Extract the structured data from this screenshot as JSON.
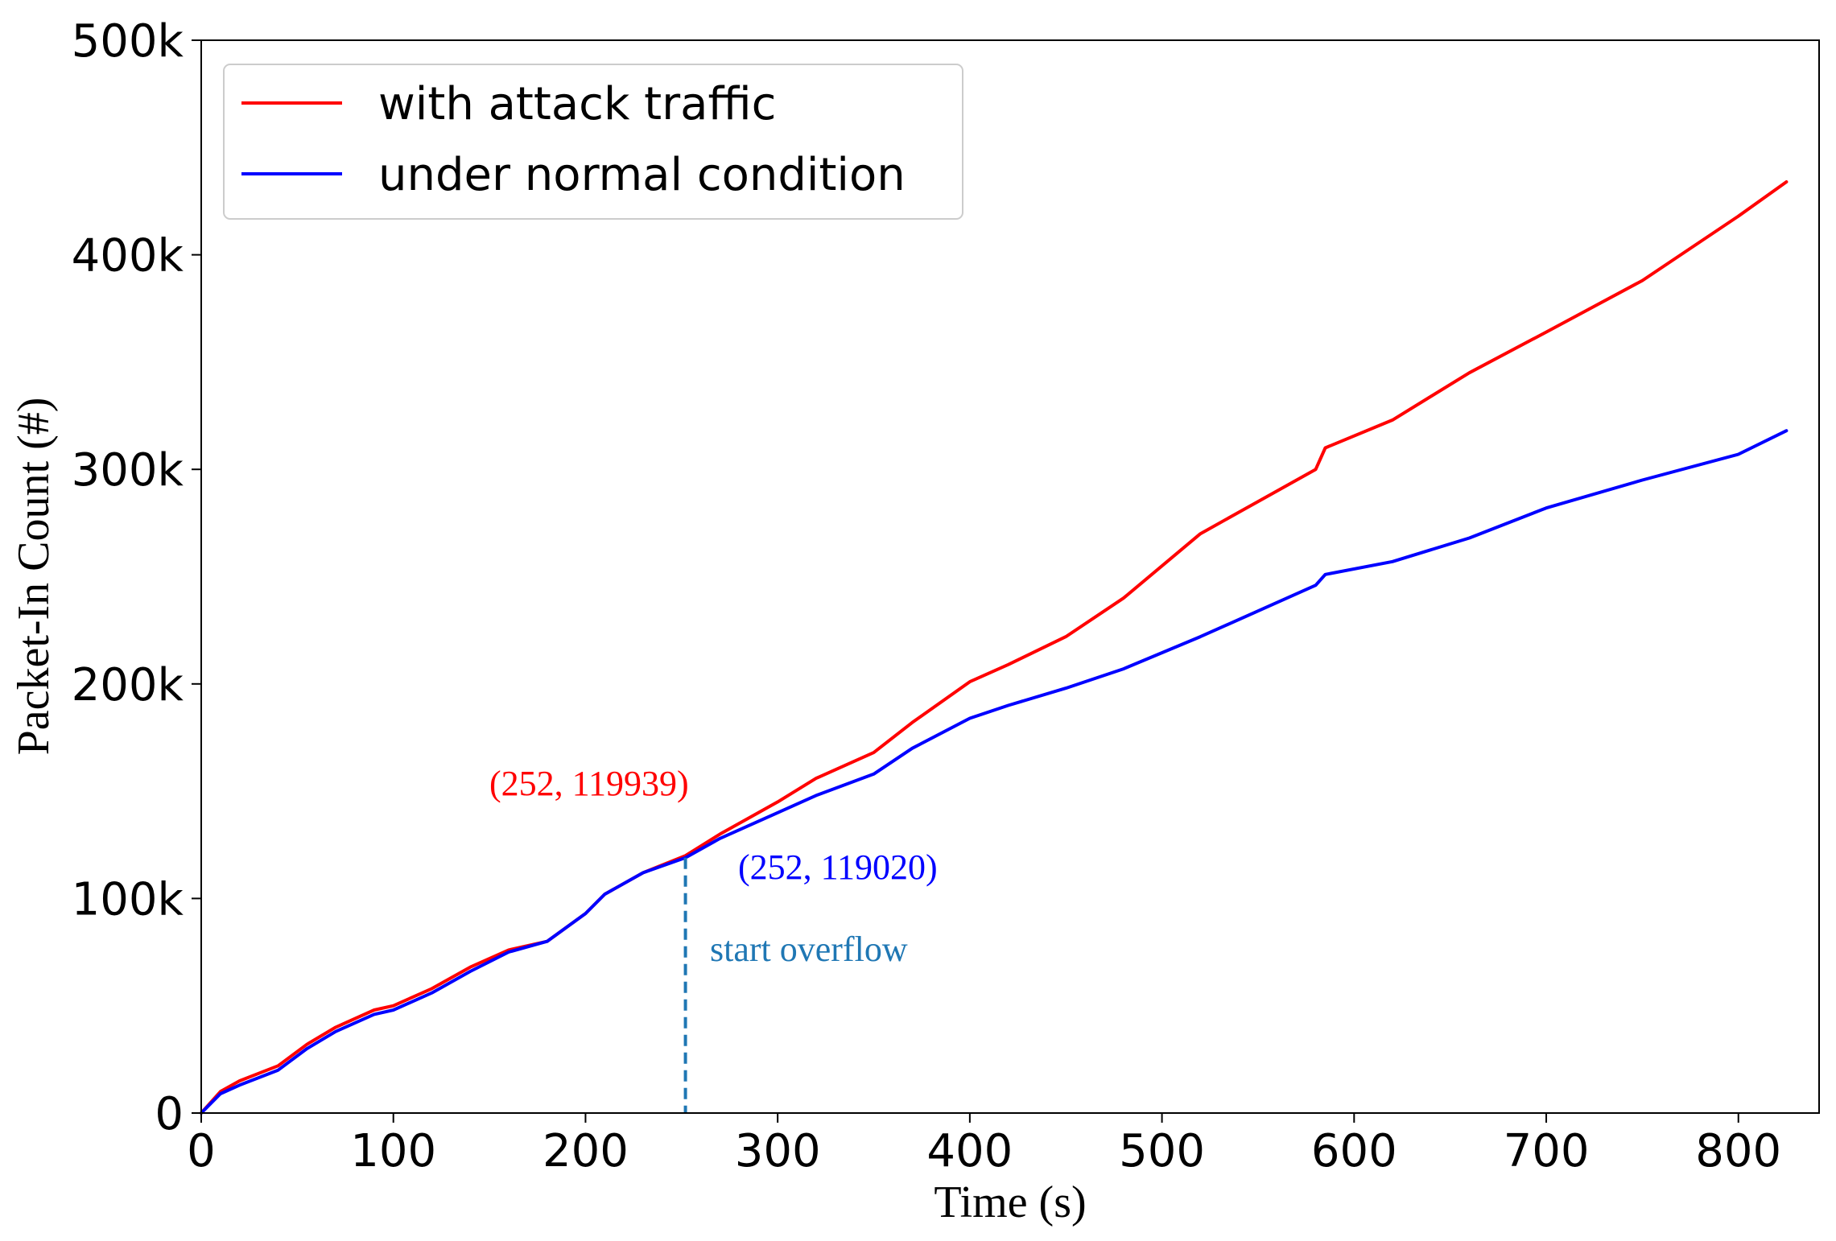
{
  "chart_data": {
    "type": "line",
    "title": "",
    "xlabel": "Time (s)",
    "ylabel": "Packet-In Count (#)",
    "xlim": [
      0,
      842
    ],
    "ylim": [
      0,
      500000
    ],
    "grid": false,
    "x_ticks": [
      0,
      100,
      200,
      300,
      400,
      500,
      600,
      700,
      800
    ],
    "x_tick_labels": [
      "0",
      "100",
      "200",
      "300",
      "400",
      "500",
      "600",
      "700",
      "800"
    ],
    "y_ticks": [
      0,
      100000,
      200000,
      300000,
      400000,
      500000
    ],
    "y_tick_labels": [
      "0",
      "100k",
      "200k",
      "300k",
      "400k",
      "500k"
    ],
    "legend": {
      "position": "top-left",
      "entries": [
        {
          "label": "with attack traffic",
          "color": "#ff0000"
        },
        {
          "label": "under normal condition",
          "color": "#0000ff"
        }
      ]
    },
    "series": [
      {
        "name": "with attack traffic",
        "color": "#ff0000",
        "x": [
          0,
          10,
          20,
          40,
          55,
          70,
          90,
          100,
          120,
          140,
          160,
          180,
          200,
          210,
          230,
          252,
          270,
          300,
          320,
          350,
          370,
          400,
          420,
          450,
          480,
          520,
          550,
          580,
          585,
          620,
          660,
          700,
          750,
          800,
          825
        ],
        "y": [
          0,
          10000,
          15000,
          22000,
          32000,
          40000,
          48000,
          50000,
          58000,
          68000,
          76000,
          80000,
          93000,
          102000,
          112000,
          119939,
          130000,
          145000,
          156000,
          168000,
          182000,
          201000,
          209000,
          222000,
          240000,
          270000,
          285000,
          300000,
          310000,
          323000,
          345000,
          364000,
          388000,
          418000,
          434000
        ]
      },
      {
        "name": "under normal condition",
        "color": "#0000ff",
        "x": [
          0,
          10,
          20,
          40,
          55,
          70,
          90,
          100,
          120,
          140,
          160,
          180,
          200,
          210,
          230,
          252,
          270,
          300,
          320,
          350,
          370,
          400,
          420,
          450,
          480,
          520,
          550,
          580,
          585,
          620,
          660,
          700,
          750,
          800,
          825
        ],
        "y": [
          0,
          9000,
          13000,
          20000,
          30000,
          38000,
          46000,
          48000,
          56000,
          66000,
          75000,
          80000,
          93000,
          102000,
          112000,
          119020,
          128000,
          140000,
          148000,
          158000,
          170000,
          184000,
          190000,
          198000,
          207000,
          222000,
          234000,
          246000,
          251000,
          257000,
          268000,
          282000,
          295000,
          307000,
          318000
        ]
      }
    ],
    "annotations": [
      {
        "text": "(252, 119939)",
        "color": "#ff0000"
      },
      {
        "text": "(252, 119020)",
        "color": "#0000ff"
      },
      {
        "text": "start overflow",
        "color": "#1f77b4"
      }
    ],
    "vline": {
      "x": 252,
      "y_top": 119020,
      "color": "#1f77b4",
      "style": "dashed"
    }
  }
}
